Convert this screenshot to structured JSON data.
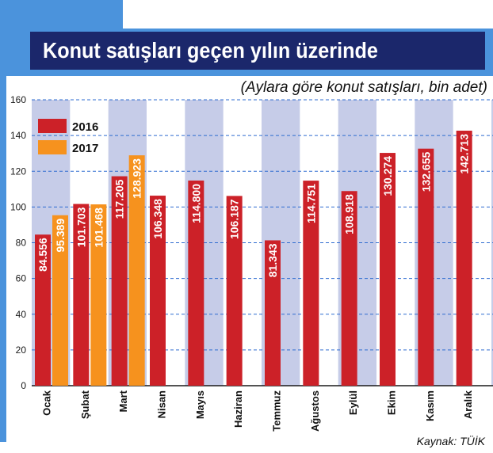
{
  "colors": {
    "frame": "#4b93dc",
    "banner": "#1b276b",
    "column_band": "#c6cce8",
    "grid": "#2e6bd0",
    "axis": "#1a1a1a"
  },
  "chart_data": {
    "type": "bar",
    "title": "Konut satışları geçen yılın üzerinde",
    "subtitle": "(Aylara göre konut satışları, bin adet)",
    "source": "Kaynak: TÜİK",
    "categories": [
      "Ocak",
      "Şubat",
      "Mart",
      "Nisan",
      "Mayıs",
      "Haziran",
      "Temmuz",
      "Ağustos",
      "Eylül",
      "Ekim",
      "Kasım",
      "Aralık"
    ],
    "ylim": [
      0,
      160
    ],
    "yticks": [
      0,
      20,
      40,
      60,
      80,
      100,
      120,
      140,
      160
    ],
    "grid": true,
    "legend": "top-left",
    "series": [
      {
        "name": "2016",
        "color": "#cc2128",
        "values": [
          84.556,
          101.703,
          117.205,
          106.348,
          114.8,
          106.187,
          81.343,
          114.751,
          108.918,
          130.274,
          132.655,
          142.713
        ],
        "labels": [
          "84.556",
          "101.703",
          "117.205",
          "106.348",
          "114.800",
          "106.187",
          "81.343",
          "114.751",
          "108.918",
          "130.274",
          "132.655",
          "142.713"
        ]
      },
      {
        "name": "2017",
        "color": "#f6921e",
        "values": [
          95.389,
          101.468,
          128.923,
          null,
          null,
          null,
          null,
          null,
          null,
          null,
          null,
          null
        ],
        "labels": [
          "95.389",
          "101.468",
          "128.923",
          null,
          null,
          null,
          null,
          null,
          null,
          null,
          null,
          null
        ]
      }
    ]
  }
}
